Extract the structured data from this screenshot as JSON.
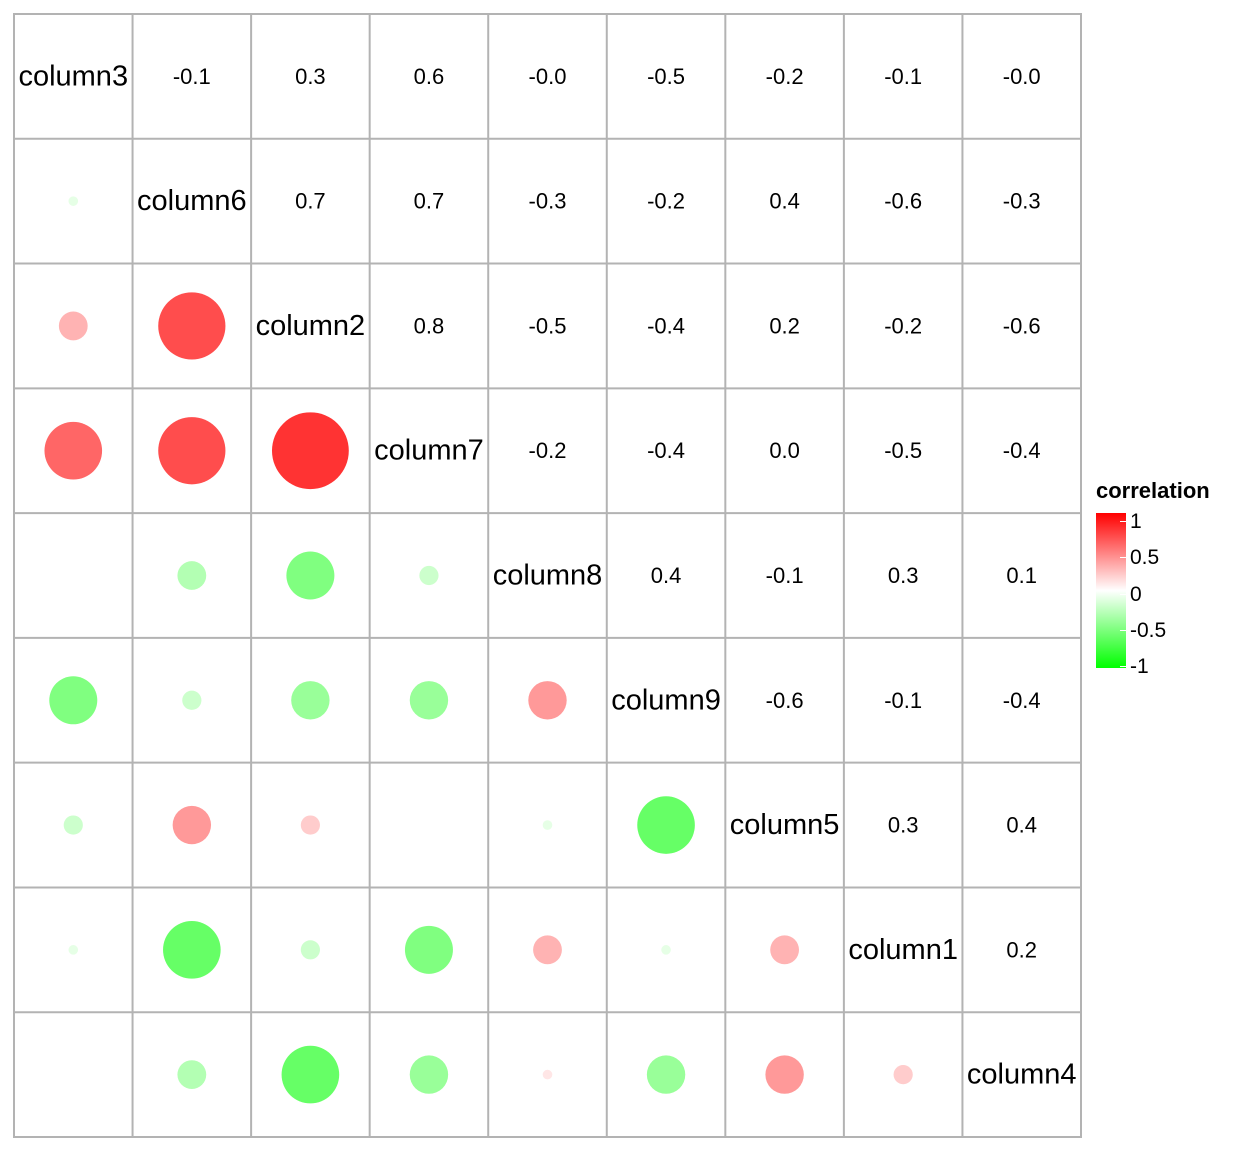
{
  "chart_data": {
    "type": "heatmap",
    "variables": [
      "column3",
      "column6",
      "column2",
      "column7",
      "column8",
      "column9",
      "column5",
      "column1",
      "column4"
    ],
    "matrix": [
      [
        1.0,
        -0.1,
        0.3,
        0.6,
        -0.0,
        -0.5,
        -0.2,
        -0.1,
        -0.0
      ],
      [
        -0.1,
        1.0,
        0.7,
        0.7,
        -0.3,
        -0.2,
        0.4,
        -0.6,
        -0.3
      ],
      [
        0.3,
        0.7,
        1.0,
        0.8,
        -0.5,
        -0.4,
        0.2,
        -0.2,
        -0.6
      ],
      [
        0.6,
        0.7,
        0.8,
        1.0,
        -0.2,
        -0.4,
        0.0,
        -0.5,
        -0.4
      ],
      [
        -0.0,
        -0.3,
        -0.5,
        -0.2,
        1.0,
        0.4,
        -0.1,
        0.3,
        0.1
      ],
      [
        -0.5,
        -0.2,
        -0.4,
        -0.4,
        0.4,
        1.0,
        -0.6,
        -0.1,
        -0.4
      ],
      [
        -0.2,
        0.4,
        0.2,
        0.0,
        -0.1,
        -0.6,
        1.0,
        0.3,
        0.4
      ],
      [
        -0.1,
        -0.6,
        -0.2,
        -0.5,
        0.3,
        -0.1,
        0.3,
        1.0,
        0.2
      ],
      [
        -0.0,
        -0.3,
        -0.6,
        -0.4,
        0.1,
        -0.4,
        0.4,
        0.2,
        1.0
      ]
    ],
    "upper_labels": [
      [
        "-0.1",
        "0.3",
        "0.6",
        "-0.0",
        "-0.5",
        "-0.2",
        "-0.1",
        "-0.0"
      ],
      [
        "0.7",
        "0.7",
        "-0.3",
        "-0.2",
        "0.4",
        "-0.6",
        "-0.3"
      ],
      [
        "0.8",
        "-0.5",
        "-0.4",
        "0.2",
        "-0.2",
        "-0.6"
      ],
      [
        "-0.2",
        "-0.4",
        "0.0",
        "-0.5",
        "-0.4"
      ],
      [
        "0.4",
        "-0.1",
        "0.3",
        "0.1"
      ],
      [
        "-0.6",
        "-0.1",
        "-0.4"
      ],
      [
        "0.3",
        "0.4"
      ],
      [
        "0.2"
      ]
    ],
    "lower_display": "circle",
    "upper_display": "number",
    "diagonal_display": "variable name",
    "color_scale": {
      "low": "#00ff00",
      "mid": "#ffffff",
      "high": "#ff0000",
      "limits": [
        -1,
        1
      ]
    },
    "grid": true,
    "legend": {
      "title": "correlation",
      "position": "right",
      "breaks": [
        1,
        0.5,
        0,
        -0.5,
        -1
      ],
      "labels": [
        "1",
        "0.5",
        "0",
        "-0.5",
        "-1"
      ]
    }
  }
}
